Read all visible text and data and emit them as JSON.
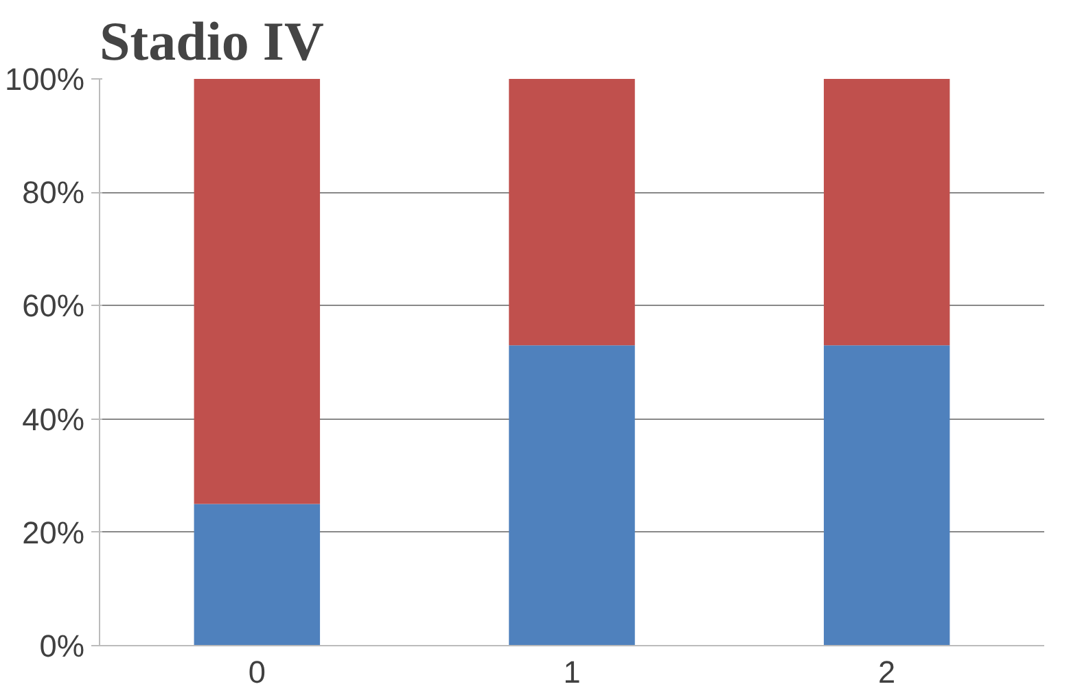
{
  "chart_data": {
    "type": "bar",
    "title": "Stadio IV",
    "categories": [
      "0",
      "1",
      "2"
    ],
    "stacked": true,
    "series": [
      {
        "color": "#4f81bd",
        "values": [
          25,
          53,
          53
        ]
      },
      {
        "color": "#c0504d",
        "values": [
          75,
          47,
          47
        ]
      }
    ],
    "ylim": [
      0,
      100
    ],
    "yticks": [
      {
        "value": 0,
        "label": "0%"
      },
      {
        "value": 20,
        "label": "20%"
      },
      {
        "value": 40,
        "label": "40%"
      },
      {
        "value": 60,
        "label": "60%"
      },
      {
        "value": 80,
        "label": "80%"
      },
      {
        "value": 100,
        "label": "100%"
      }
    ],
    "grid": "y"
  }
}
